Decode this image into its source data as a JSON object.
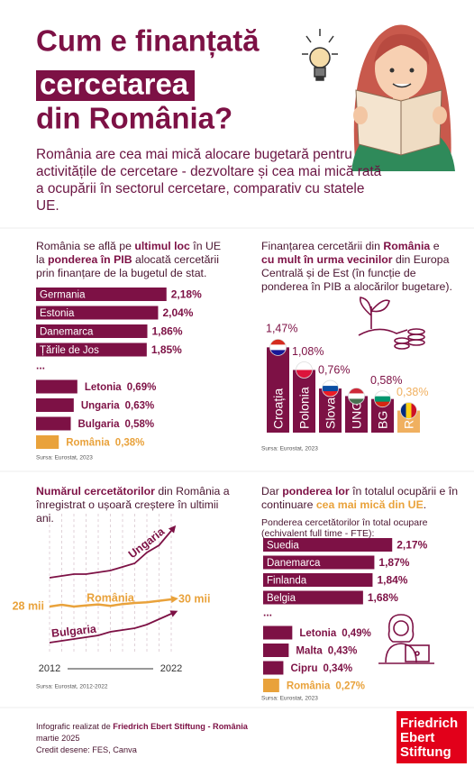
{
  "header": {
    "title": [
      "Cum e finanțată",
      "cercetarea",
      "din România?"
    ],
    "intro": "România are cea mai mică alocare bugetară pentru activitățile de cercetare - dezvoltare și cea mai mică rată a ocupării în sectorul cercetare, comparativ cu statele UE."
  },
  "chart_data": [
    {
      "type": "bar",
      "orientation": "horizontal",
      "description": [
        "România se află pe ",
        {
          "text": "ultimul loc",
          "style": "bold"
        },
        " în UE la ",
        {
          "text": "ponderea în PIB",
          "style": "bold"
        },
        " alocată cercetării prin finanțare de la bugetul de stat."
      ],
      "categories": [
        "Germania",
        "Estonia",
        "Danemarca",
        "Țările de Jos",
        "...",
        "Letonia",
        "Ungaria",
        "Bulgaria",
        "România"
      ],
      "values": [
        2.18,
        2.04,
        1.86,
        1.85,
        null,
        0.69,
        0.63,
        0.58,
        0.38
      ],
      "value_labels": [
        "2,18%",
        "2,04%",
        "1,86%",
        "1,85%",
        null,
        "0,69%",
        "0,63%",
        "0,58%",
        "0,38%"
      ],
      "colors": [
        "#7d1145",
        "#7d1145",
        "#7d1145",
        "#7d1145",
        null,
        "#7d1145",
        "#7d1145",
        "#7d1145",
        "#e9a23b"
      ],
      "xlim": [
        0,
        2.5
      ],
      "source": "Sursa: Eurostat, 2023"
    },
    {
      "type": "bar",
      "orientation": "vertical",
      "description": [
        "Finanțarea cercetării din ",
        {
          "text": "România",
          "style": "bold"
        },
        " e ",
        {
          "text": "cu mult în urma vecinilor",
          "style": "bold"
        },
        " din Europa Centrală și de Est (în funcție de ponderea în PIB a alocărilor bugetare)."
      ],
      "categories": [
        "Croația",
        "Polonia",
        "Slovacia",
        "UNG",
        "BG",
        "RO"
      ],
      "values": [
        1.47,
        1.08,
        0.76,
        0.63,
        0.58,
        0.38
      ],
      "value_labels": [
        "1,47%",
        "1,08%",
        "0,76%",
        null,
        "0,58%",
        "0,38%"
      ],
      "colors": [
        "#7d1145",
        "#7d1145",
        "#7d1145",
        "#7d1145",
        "#7d1145",
        "#f0b060"
      ],
      "ylim": [
        0,
        1.6
      ],
      "source": "Sursa: Eurostat, 2023"
    },
    {
      "type": "line",
      "description": [
        {
          "text": "Numărul cercetătorilor",
          "style": "bold"
        },
        " din România a înregistrat o ușoară creștere în ultimii ani."
      ],
      "x": [
        2012,
        2013,
        2014,
        2015,
        2016,
        2017,
        2018,
        2019,
        2020,
        2021,
        2022
      ],
      "xlim": [
        2012,
        2022
      ],
      "xticks": [
        2012,
        2022
      ],
      "ylim": [
        15,
        50
      ],
      "grid": true,
      "series": [
        {
          "name": "Ungaria",
          "color": "#7d1145",
          "values": [
            36,
            36.5,
            37,
            37,
            37.5,
            38,
            39,
            40,
            43,
            45,
            49
          ]
        },
        {
          "name": "România",
          "color": "#e9a23b",
          "values": [
            28,
            28.5,
            28,
            28.3,
            28.6,
            28.2,
            28.7,
            29,
            29.2,
            29.6,
            30
          ],
          "value_labels": [
            "28 mii",
            null,
            null,
            null,
            null,
            null,
            null,
            null,
            null,
            null,
            "30 mii"
          ]
        },
        {
          "name": "Bulgaria",
          "color": "#7d1145",
          "values": [
            18,
            18.5,
            19,
            19.5,
            20,
            21,
            21.5,
            22,
            23,
            24.5,
            26
          ]
        }
      ],
      "source": "Sursa: Eurostat, 2012-2022"
    },
    {
      "type": "bar",
      "orientation": "horizontal",
      "description": [
        "Dar ",
        {
          "text": "ponderea lor",
          "style": "bold"
        },
        " în totalul ocupării e în continuare ",
        {
          "text": "cea mai mică din UE",
          "style": "hl"
        },
        "."
      ],
      "subtitle": "Ponderea cercetătorilor în total ocupare (echivalent full time - FTE):",
      "categories": [
        "Suedia",
        "Danemarca",
        "Finlanda",
        "Belgia",
        "...",
        "Letonia",
        "Malta",
        "Cipru",
        "România"
      ],
      "values": [
        2.17,
        1.87,
        1.84,
        1.68,
        null,
        0.49,
        0.43,
        0.34,
        0.27
      ],
      "value_labels": [
        "2,17%",
        "1,87%",
        "1,84%",
        "1,68%",
        null,
        "0,49%",
        "0,43%",
        "0,34%",
        "0,27%"
      ],
      "colors": [
        "#7d1145",
        "#7d1145",
        "#7d1145",
        "#7d1145",
        null,
        "#7d1145",
        "#7d1145",
        "#7d1145",
        "#e9a23b"
      ],
      "xlim": [
        0,
        2.5
      ],
      "source": "Sursa: Eurostat, 2023"
    }
  ],
  "footer": {
    "credit": [
      "Infografic realizat de ",
      {
        "text": "Friedrich Ebert Stiftung - România",
        "style": "bold"
      }
    ],
    "date": "martie 2025",
    "drawings": "Credit desene: FES, Canva"
  },
  "logo": [
    "Friedrich",
    "Ebert",
    "Stiftung"
  ]
}
